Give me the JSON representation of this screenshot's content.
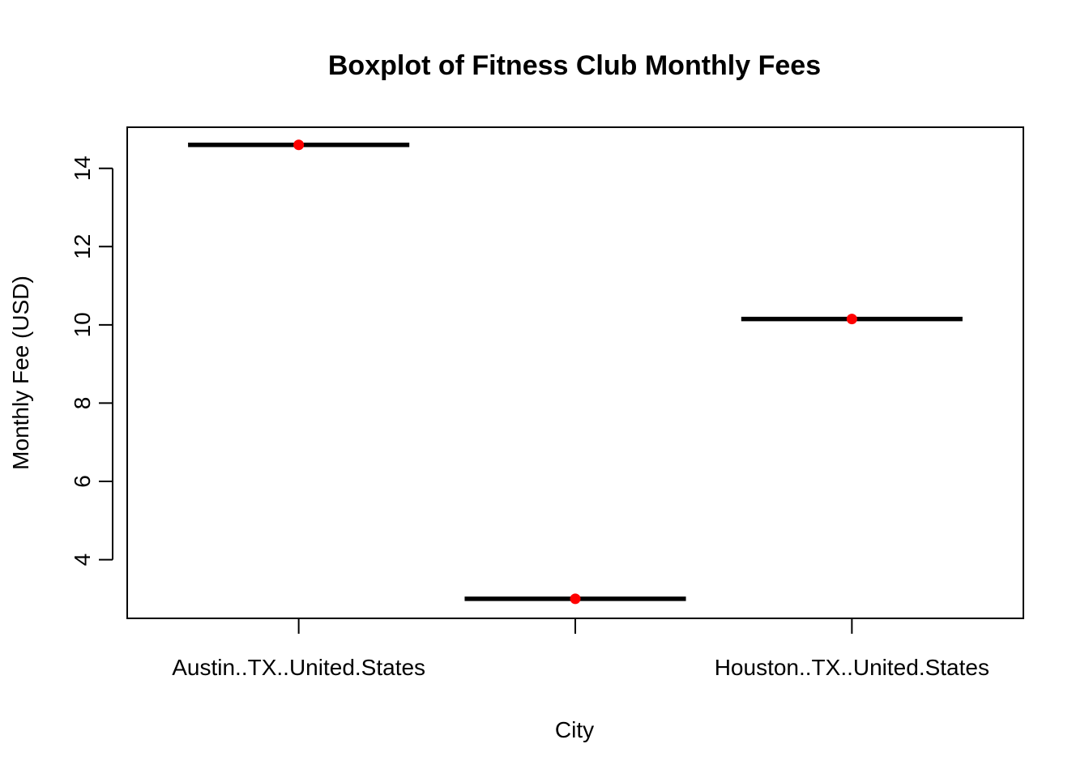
{
  "chart_data": {
    "type": "boxplot",
    "title": "Boxplot of Fitness Club Monthly Fees",
    "xlabel": "City",
    "ylabel": "Monthly Fee (USD)",
    "ylim": [
      2.5,
      15.05
    ],
    "yticks": [
      4,
      6,
      8,
      10,
      12,
      14
    ],
    "categories": [
      "Austin..TX..United.States",
      "",
      "Houston..TX..United.States"
    ],
    "values": [
      14.6,
      3.0,
      10.15
    ],
    "mean_point_color": "#ff0000",
    "median_line_color": "#000000"
  }
}
